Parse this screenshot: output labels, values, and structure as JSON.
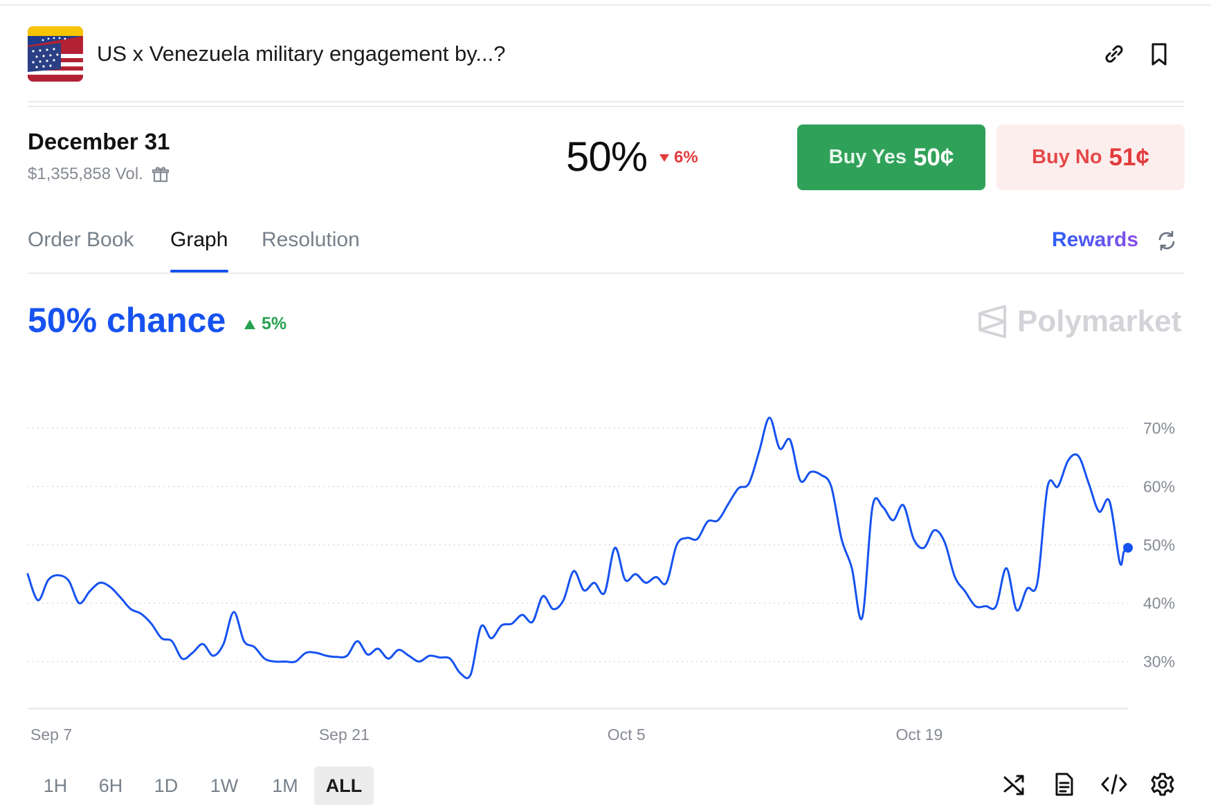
{
  "market": {
    "title": "US x Venezuela military engagement by...?",
    "flag_icon": "us-venezuela-flag-icon",
    "header_icons": [
      "link-icon",
      "bookmark-icon"
    ]
  },
  "outcome": {
    "date": "December 31",
    "volume": "$1,355,858 Vol.",
    "volume_icon": "gift-icon",
    "percent": "50%",
    "change": "6%",
    "change_direction": "down"
  },
  "buttons": {
    "yes_label": "Buy Yes",
    "yes_price": "50¢",
    "no_label": "Buy No",
    "no_price": "51¢"
  },
  "tabs": [
    {
      "label": "Order Book",
      "active": false
    },
    {
      "label": "Graph",
      "active": true
    },
    {
      "label": "Resolution",
      "active": false
    }
  ],
  "rewards_label": "Rewards",
  "summary": {
    "chance": "50% chance",
    "change": "5%",
    "change_direction": "up"
  },
  "brand": "Polymarket",
  "colors": {
    "line": "#1652f0",
    "yes": "#30a159",
    "no_bg": "#fdeeee",
    "no_text": "#e23c3c",
    "up": "#27a151",
    "down": "#e23c3c"
  },
  "chart_data": {
    "type": "line",
    "series": [
      {
        "values": [
          [
            0,
            45
          ],
          [
            0.5,
            40.5
          ],
          [
            1,
            44
          ],
          [
            1.5,
            44.8
          ],
          [
            2,
            43.8
          ],
          [
            2.5,
            40
          ],
          [
            3,
            42
          ],
          [
            3.5,
            43.5
          ],
          [
            4,
            42.8
          ],
          [
            4.5,
            41
          ],
          [
            5,
            39
          ],
          [
            5.5,
            38.2
          ],
          [
            6,
            36.5
          ],
          [
            6.5,
            34
          ],
          [
            7,
            33.5
          ],
          [
            7.5,
            30.5
          ],
          [
            8,
            31.5
          ],
          [
            8.5,
            33
          ],
          [
            9,
            31
          ],
          [
            9.5,
            33
          ],
          [
            10,
            38.5
          ],
          [
            10.5,
            33.5
          ],
          [
            11,
            32.5
          ],
          [
            11.5,
            30.5
          ],
          [
            12,
            30
          ],
          [
            12.5,
            30
          ],
          [
            13,
            30
          ],
          [
            13.5,
            31.5
          ],
          [
            14,
            31.5
          ],
          [
            14.5,
            31
          ],
          [
            15,
            30.8
          ],
          [
            15.5,
            31
          ],
          [
            16,
            33.5
          ],
          [
            16.5,
            31.2
          ],
          [
            17,
            32.2
          ],
          [
            17.5,
            30.5
          ],
          [
            18,
            32
          ],
          [
            18.5,
            31
          ],
          [
            19,
            30
          ],
          [
            19.5,
            31
          ],
          [
            20,
            30.7
          ],
          [
            20.5,
            30.5
          ],
          [
            21,
            28
          ],
          [
            21.5,
            27.8
          ],
          [
            22,
            36
          ],
          [
            22.5,
            34
          ],
          [
            23,
            36.2
          ],
          [
            23.5,
            36.5
          ],
          [
            24,
            38
          ],
          [
            24.5,
            36.8
          ],
          [
            25,
            41.2
          ],
          [
            25.5,
            39
          ],
          [
            26,
            40.5
          ],
          [
            26.5,
            45.5
          ],
          [
            27,
            42.2
          ],
          [
            27.5,
            43.5
          ],
          [
            28,
            41.8
          ],
          [
            28.5,
            49.5
          ],
          [
            29,
            44
          ],
          [
            29.5,
            45
          ],
          [
            30,
            43.5
          ],
          [
            30.5,
            44.5
          ],
          [
            31,
            43.5
          ],
          [
            31.5,
            50
          ],
          [
            32,
            51.2
          ],
          [
            32.5,
            51
          ],
          [
            33,
            54
          ],
          [
            33.5,
            54.2
          ],
          [
            34,
            57
          ],
          [
            34.5,
            59.7
          ],
          [
            35,
            60.5
          ],
          [
            35.5,
            66
          ],
          [
            36,
            71.8
          ],
          [
            36.5,
            66.5
          ],
          [
            37,
            68
          ],
          [
            37.5,
            61
          ],
          [
            38,
            62.5
          ],
          [
            38.5,
            62
          ],
          [
            39,
            60
          ],
          [
            39.5,
            51
          ],
          [
            40,
            46
          ],
          [
            40.5,
            37.5
          ],
          [
            41,
            56.5
          ],
          [
            41.5,
            56.5
          ],
          [
            42,
            54.2
          ],
          [
            42.5,
            56.8
          ],
          [
            43,
            51
          ],
          [
            43.5,
            49.5
          ],
          [
            44,
            52.5
          ],
          [
            44.5,
            50.5
          ],
          [
            45,
            44.5
          ],
          [
            45.5,
            42
          ],
          [
            46,
            39.5
          ],
          [
            46.5,
            39.5
          ],
          [
            47,
            39.5
          ],
          [
            47.5,
            46
          ],
          [
            48,
            38.8
          ],
          [
            48.5,
            42.5
          ],
          [
            49,
            43.5
          ],
          [
            49.5,
            60
          ],
          [
            50,
            60
          ],
          [
            50.5,
            64.5
          ],
          [
            51,
            65.2
          ],
          [
            51.5,
            60.5
          ],
          [
            52,
            55.7
          ],
          [
            52.5,
            57.5
          ],
          [
            53,
            47
          ],
          [
            53.2,
            48.8
          ],
          [
            53.4,
            49.5
          ]
        ]
      }
    ],
    "x_ticks": [
      {
        "label": "Sep 7",
        "value": 0
      },
      {
        "label": "Sep 21",
        "value": 14
      },
      {
        "label": "Oct 5",
        "value": 28
      },
      {
        "label": "Oct 19",
        "value": 42
      }
    ],
    "xlim": [
      0,
      53.4
    ],
    "y_ticks": [
      30,
      40,
      50,
      60,
      70
    ],
    "y_tick_suffix": "%",
    "ylim": [
      22,
      77
    ],
    "grid": "horizontal-dotted",
    "y_axis_side": "right",
    "last_point_marker": true
  },
  "time_ranges": [
    {
      "label": "1H",
      "active": false
    },
    {
      "label": "6H",
      "active": false
    },
    {
      "label": "1D",
      "active": false
    },
    {
      "label": "1W",
      "active": false
    },
    {
      "label": "1M",
      "active": false
    },
    {
      "label": "ALL",
      "active": true
    }
  ],
  "tool_icons": [
    "shuffle-icon",
    "document-icon",
    "embed-code-icon",
    "settings-gear-icon"
  ]
}
